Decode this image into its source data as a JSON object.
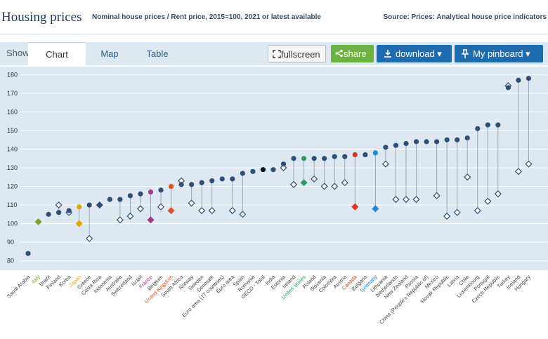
{
  "header": {
    "title": "Housing prices",
    "subtitle": "Nominal house prices / Rent price, 2015=100, 2021 or latest available",
    "source": "Source: Prices: Analytical house price indicators"
  },
  "toolbar": {
    "show_label": "Show:",
    "tabs": [
      "Chart",
      "Map",
      "Table"
    ],
    "fullscreen_label": "fullscreen",
    "share_label": "share",
    "download_label": "download ▾",
    "pinboard_label": "My pinboard ▾"
  },
  "colors": {
    "background": "#dde8f1",
    "default_marker": "#2f5073",
    "brand_blue": "#1e6cb0",
    "share_green": "#6cb43f"
  },
  "icons": {
    "fullscreen": "fullscreen-icon",
    "share": "share-icon",
    "download": "download-icon",
    "pin": "pin-icon"
  },
  "chart_data": {
    "type": "scatter",
    "y_ticks": [
      80,
      90,
      100,
      110,
      120,
      130,
      140,
      150,
      160,
      170,
      180
    ],
    "ylim": [
      75,
      182
    ],
    "grid": true,
    "categories": [
      "Saudi Arabia",
      "Italy",
      "Brazil",
      "Finland",
      "Korea",
      "Japan",
      "Greece",
      "Costa Rica",
      "Indonesia",
      "Australia",
      "Switzerland",
      "Israel",
      "France",
      "Belgium",
      "United Kingdom",
      "South Africa",
      "Norway",
      "Sweden",
      "Denmark",
      "Euro area (17 countries)",
      "Euro area",
      "Spain",
      "Romania",
      "OECD - Total",
      "India",
      "Estonia",
      "Ireland",
      "United States",
      "Poland",
      "Slovenia",
      "Colombia",
      "Austria",
      "Canada",
      "Bulgaria",
      "Germany",
      "Lithuania",
      "Netherlands",
      "New Zealand",
      "Russia",
      "China (People's Republic of)",
      "Mexico",
      "Slovak Republic",
      "Latvia",
      "Chile",
      "Luxembourg",
      "Portugal",
      "Czech Republic",
      "Turkey",
      "Iceland",
      "Hungary"
    ],
    "label_colors": {
      "Italy": "#7aa52a",
      "Japan": "#e0a800",
      "France": "#a03a8c",
      "United Kingdom": "#e0502a",
      "United States": "#2e9a6a",
      "Canada": "#e0302a",
      "Germany": "#1e8ad6"
    },
    "series": [
      {
        "name": "Nominal house prices",
        "marker": "filled-circle",
        "values": [
          84,
          101,
          105,
          106,
          107,
          109,
          110,
          110,
          113,
          113,
          115,
          116,
          117,
          118,
          120,
          121,
          121,
          122,
          123,
          124,
          124,
          127,
          128,
          129,
          129,
          132,
          135,
          135,
          135,
          135,
          136,
          136,
          137,
          137,
          138,
          141,
          142,
          143,
          144,
          144,
          144,
          145,
          145,
          146,
          151,
          153,
          153,
          173,
          177,
          178
        ]
      },
      {
        "name": "Rent price",
        "marker": "hollow-diamond",
        "values": [
          null,
          101,
          null,
          110,
          106,
          100,
          92,
          110,
          null,
          102,
          104,
          108,
          102,
          109,
          107,
          123,
          111,
          107,
          107,
          null,
          107,
          105,
          null,
          null,
          null,
          130,
          121,
          122,
          124,
          120,
          120,
          122,
          109,
          null,
          108,
          132,
          113,
          113,
          113,
          null,
          115,
          104,
          106,
          125,
          107,
          112,
          116,
          174,
          128,
          132
        ]
      }
    ]
  }
}
